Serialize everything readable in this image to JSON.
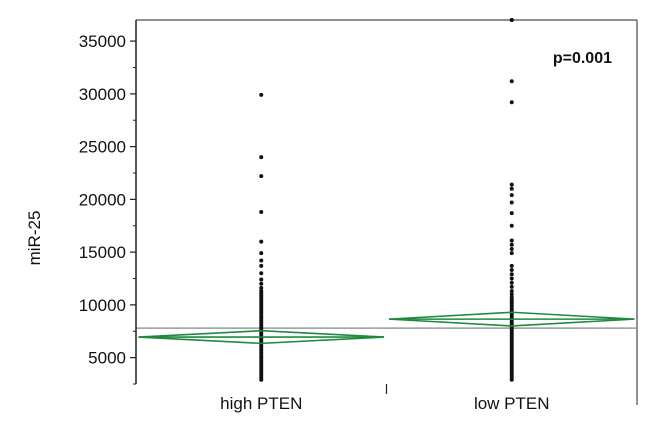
{
  "chart_data": {
    "type": "scatter",
    "subtype": "one-way means diamond plot",
    "title": "",
    "xlabel": "",
    "ylabel": "miR-25",
    "categories": [
      "high PTEN",
      "low PTEN"
    ],
    "ylim": [
      2500,
      37000
    ],
    "yticks": [
      5000,
      10000,
      15000,
      20000,
      25000,
      30000,
      35000
    ],
    "grid": false,
    "legend": "none",
    "annotation": "p=0.001",
    "grand_mean": 7800,
    "series": [
      {
        "category": "high PTEN",
        "mean": 6950,
        "ci_lower": 6350,
        "ci_upper": 7550,
        "points": [
          29900,
          24000,
          22200,
          18800,
          16000,
          14900,
          14200,
          13700,
          13000,
          12400,
          12000,
          11600,
          11300,
          11100,
          10900,
          10700,
          10500,
          10300,
          10100,
          9900,
          9700,
          9500,
          9300,
          9100,
          8900,
          8700,
          8500,
          8300,
          8100,
          7900,
          7700,
          7500,
          7300,
          7100,
          6900,
          6700,
          6500,
          6300,
          6100,
          5900,
          5700,
          5500,
          5300,
          5100,
          4900,
          4700,
          4500,
          4300,
          4100,
          3900,
          3700,
          3500,
          3300,
          3100,
          2900
        ]
      },
      {
        "category": "low PTEN",
        "mean": 8650,
        "ci_lower": 8000,
        "ci_upper": 9300,
        "points": [
          37100,
          37000,
          31200,
          29200,
          21400,
          21000,
          20400,
          19700,
          18700,
          17500,
          16100,
          15700,
          15300,
          14900,
          13700,
          13300,
          12900,
          12500,
          12100,
          11700,
          11300,
          11000,
          10700,
          10500,
          10300,
          10100,
          9900,
          9700,
          9500,
          9300,
          9100,
          8900,
          8700,
          8500,
          8300,
          8100,
          7900,
          7700,
          7500,
          7300,
          7100,
          6900,
          6700,
          6500,
          6300,
          6100,
          5900,
          5700,
          5500,
          5300,
          5100,
          4900,
          4700,
          4500,
          4300,
          4100,
          3900,
          3700,
          3500,
          3300,
          3100,
          2900
        ]
      }
    ],
    "colors": {
      "diamond": "#1e8a3c",
      "points": "#111111",
      "grand_mean_line": "#999999",
      "frame": "#222222"
    }
  }
}
